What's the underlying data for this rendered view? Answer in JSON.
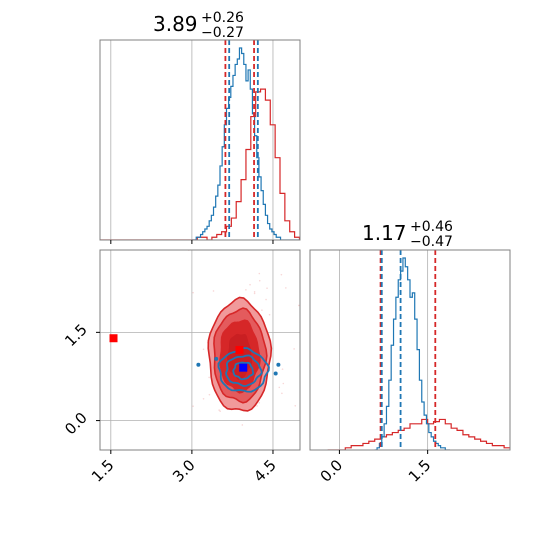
{
  "chart_data": {
    "type": "corner",
    "colors": {
      "red": "#d62728",
      "blue": "#1f77b4",
      "grid": "#b0b0b0",
      "axis": "#808080"
    },
    "panels": [
      {
        "id": "marg-x",
        "type": "histogram",
        "title": {
          "value": "3.89",
          "plus": "+0.26",
          "minus": "−0.27"
        },
        "xlim": [
          1.3,
          5.0
        ],
        "grid_x": [
          1.5,
          3.0,
          4.5
        ],
        "series": [
          {
            "name": "",
            "color": "#d62728",
            "bin_start": 1.3,
            "bin_width": 0.09,
            "counts": [
              0,
              0,
              0,
              0,
              0,
              0,
              0,
              0,
              0,
              0,
              0,
              0,
              0,
              0,
              0,
              0,
              0,
              0,
              0,
              0,
              1,
              1,
              0,
              1,
              2,
              3,
              5,
              8,
              14,
              22,
              33,
              45,
              54,
              55,
              51,
              42,
              30,
              17,
              7,
              3,
              1,
              0,
              0,
              0,
              0,
              0
            ]
          },
          {
            "name": "",
            "color": "#1f77b4",
            "bin_start": 3.0,
            "bin_width": 0.04,
            "counts": [
              0,
              0,
              1,
              1,
              2,
              3,
              4,
              5,
              7,
              9,
              12,
              16,
              20,
              27,
              34,
              42,
              48,
              52,
              56,
              60,
              64,
              66,
              70,
              68,
              64,
              58,
              62,
              55,
              46,
              38,
              30,
              23,
              18,
              13,
              9,
              6,
              4,
              3,
              2,
              1,
              1,
              0,
              0,
              0,
              0,
              0,
              0,
              0,
              0,
              0
            ]
          }
        ],
        "quantile_lines": [
          {
            "color": "#d62728",
            "values": [
              3.62,
              4.15
            ]
          },
          {
            "color": "#1f77b4",
            "values": [
              3.69,
              4.22
            ]
          }
        ]
      },
      {
        "id": "joint",
        "type": "contour-scatter",
        "xlim": [
          1.3,
          5.0
        ],
        "ylim": [
          -0.5,
          2.9
        ],
        "grid_x": [
          1.5,
          3.0,
          4.5
        ],
        "grid_y": [
          0.0,
          1.5
        ],
        "xticks": [
          "1.5",
          "3.0",
          "4.5"
        ],
        "yticks": [
          "0.0",
          "1.5"
        ],
        "red_contour_levels": [
          0.5,
          1.0,
          1.5,
          2.0
        ],
        "blue_contour_levels": [
          0.5,
          1.0,
          1.5
        ],
        "markers": [
          {
            "color": "#ff0000",
            "x": 1.55,
            "y": 1.4
          },
          {
            "color": "#ff0000",
            "x": 3.88,
            "y": 1.2
          },
          {
            "color": "#0000ff",
            "x": 3.95,
            "y": 0.9
          }
        ]
      },
      {
        "id": "marg-y",
        "type": "histogram",
        "title": {
          "value": "1.17",
          "plus": "+0.46",
          "minus": "−0.47"
        },
        "xlim": [
          -0.5,
          2.9
        ],
        "grid_x": [
          0.0,
          1.5
        ],
        "xticks": [
          "0.0",
          "1.5"
        ],
        "series": [
          {
            "name": "",
            "color": "#d62728",
            "bin_start": -0.2,
            "bin_width": 0.1,
            "counts": [
              0,
              0,
              0,
              1,
              2,
              2,
              3,
              4,
              5,
              6,
              7,
              8,
              9,
              10,
              12,
              12,
              14,
              12,
              13,
              14,
              12,
              10,
              9,
              7,
              6,
              5,
              4,
              3,
              2,
              2,
              1,
              1,
              0,
              0,
              0,
              0
            ]
          },
          {
            "name": "",
            "color": "#1f77b4",
            "bin_start": 0.6,
            "bin_width": 0.04,
            "counts": [
              0,
              1,
              3,
              6,
              12,
              20,
              32,
              48,
              60,
              70,
              78,
              82,
              88,
              84,
              78,
              70,
              72,
              60,
              46,
              32,
              22,
              16,
              12,
              8,
              6,
              4,
              3,
              2,
              1,
              1,
              0,
              0
            ]
          }
        ],
        "quantile_lines": [
          {
            "color": "#d62728",
            "values": [
              0.7,
              1.63
            ]
          },
          {
            "color": "#1f77b4",
            "values": [
              0.72,
              1.04
            ]
          }
        ]
      }
    ]
  }
}
